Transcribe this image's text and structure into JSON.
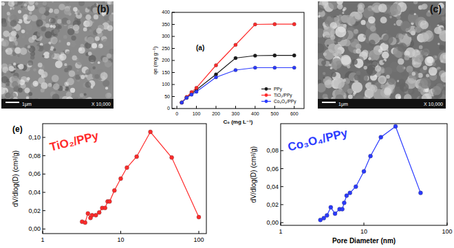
{
  "chart_data": [
    {
      "type": "line",
      "title": "(a)",
      "x_label": "C₀ (mg L⁻¹)",
      "y_label": "qe (mg g⁻¹)",
      "x": [
        25,
        50,
        75,
        100,
        200,
        300,
        400,
        500,
        600
      ],
      "series": [
        {
          "name": "PPy",
          "color": "#1a1a1a",
          "marker": "circle",
          "values": [
            25,
            45,
            62,
            78,
            142,
            210,
            220,
            221,
            221
          ]
        },
        {
          "name": "TiO₂/PPy",
          "color": "#ff2a2a",
          "marker": "circle",
          "values": [
            25,
            48,
            68,
            86,
            180,
            265,
            350,
            351,
            351
          ]
        },
        {
          "name": "Co₃O₄/PPy",
          "color": "#2a3aff",
          "marker": "circle",
          "values": [
            25,
            45,
            58,
            70,
            130,
            160,
            170,
            170,
            170
          ]
        }
      ],
      "xlim": [
        -25,
        650
      ],
      "xticks": [
        0,
        100,
        200,
        300,
        400,
        500,
        600
      ],
      "ylim": [
        0,
        400
      ],
      "yticks": [
        0,
        50,
        100,
        150,
        200,
        250,
        300,
        350,
        400
      ],
      "grid": false,
      "legend": "lower right"
    },
    {
      "type": "line",
      "title": "(e)",
      "y_label": "dV/dlog(D) (cm³/g)",
      "annotations": [
        {
          "text": "TiO₂/PPy",
          "color": "#ff2a2a"
        }
      ],
      "x": [
        3.2,
        3.5,
        3.8,
        4.1,
        4.3,
        4.8,
        5.3,
        5.8,
        6.3,
        6.8,
        7.2,
        8.3,
        10,
        12,
        16,
        24,
        45,
        100
      ],
      "series": [
        {
          "name": "TiO₂/PPy",
          "color": "#ff2a2a",
          "marker": "circle",
          "values": [
            0.008,
            0.007,
            0.017,
            0.012,
            0.015,
            0.015,
            0.018,
            0.023,
            0.023,
            0.03,
            0.03,
            0.042,
            0.055,
            0.067,
            0.079,
            0.106,
            0.078,
            0.013
          ]
        }
      ],
      "log": "x",
      "xlim": [
        1,
        125
      ],
      "xticks": [
        1,
        10,
        100
      ],
      "ylim": [
        -0.005,
        0.115
      ],
      "yticks": [
        {
          "value": 0,
          "label": "0,00"
        },
        {
          "value": 0.02,
          "label": "0,02"
        },
        {
          "value": 0.04,
          "label": "0,04"
        },
        {
          "value": 0.06,
          "label": "0,06"
        },
        {
          "value": 0.08,
          "label": "0,08"
        },
        {
          "value": 0.1,
          "label": "0,10"
        }
      ],
      "grid": false
    },
    {
      "type": "line",
      "x_label": "Pore Diameter (nm)",
      "y_label": "dV/dlog(D) (cm³/g)",
      "annotations": [
        {
          "text": "Co₃O₄/PPy",
          "color": "#2a3aff"
        }
      ],
      "x": [
        3,
        3.3,
        3.6,
        4,
        4.5,
        5.1,
        5.5,
        5.8,
        6.2,
        6.8,
        8,
        10,
        12,
        16,
        24,
        48
      ],
      "series": [
        {
          "name": "Co₃O₄/PPy",
          "color": "#2a3aff",
          "marker": "circle",
          "values": [
            0.003,
            0.005,
            0.008,
            0.017,
            0.01,
            0.015,
            0.015,
            0.022,
            0.03,
            0.033,
            0.04,
            0.057,
            0.074,
            0.095,
            0.107,
            0.033
          ]
        }
      ],
      "log": "x",
      "xlim": [
        1,
        100
      ],
      "xticks": [
        1,
        10,
        100
      ],
      "ylim": [
        -0.003,
        0.11
      ],
      "yticks": [
        {
          "value": 0,
          "label": "0,00"
        },
        {
          "value": 0.02,
          "label": "0,02"
        },
        {
          "value": 0.04,
          "label": "0,04"
        },
        {
          "value": 0.06,
          "label": "0,06"
        },
        {
          "value": 0.08,
          "label": "0,08"
        }
      ],
      "grid": false
    }
  ],
  "images": [
    {
      "label": "(b)",
      "scale_bar": "1μm",
      "magnification": "X 10,000"
    },
    {
      "label": "(c)",
      "scale_bar": "1μm",
      "magnification": "X 10,000"
    }
  ]
}
